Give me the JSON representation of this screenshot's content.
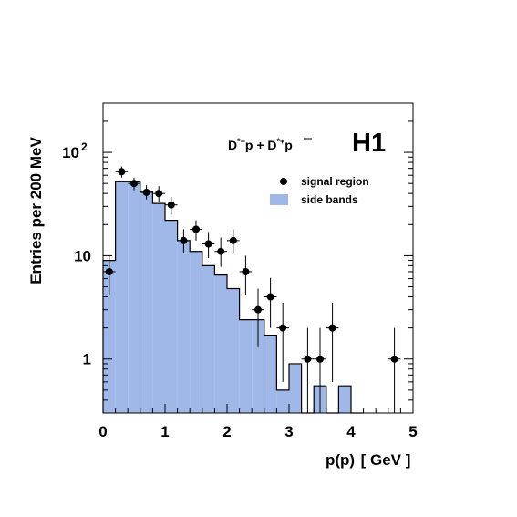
{
  "colors": {
    "band_fill": "#9fb8e8",
    "line": "#000000",
    "marker": "#000000"
  },
  "chart_data": {
    "type": "bar",
    "title": "",
    "experiment_label": "H1",
    "process_label": {
      "part1": "D",
      "part1_sup": "*−",
      "part2": "p + D",
      "part2_sup": "*+",
      "part3": "p"
    },
    "xlabel": "p(p)",
    "xlabel_units": "[ GeV ]",
    "ylabel": "Entries per 200 MeV",
    "xlim": [
      0,
      5
    ],
    "ylim": [
      0.3,
      300
    ],
    "y_scale": "log",
    "x_ticks": [
      "0",
      "1",
      "2",
      "3",
      "4",
      "5"
    ],
    "y_ticks": [
      {
        "value": 1,
        "label": "1",
        "sup": ""
      },
      {
        "value": 10,
        "label": "10",
        "sup": ""
      },
      {
        "value": 100,
        "label": "10",
        "sup": "2"
      }
    ],
    "legend": {
      "placement": "top-right",
      "entries": [
        {
          "name": "signal region",
          "symbol": "dot"
        },
        {
          "name": "side bands",
          "symbol": "box"
        }
      ]
    },
    "series": [
      {
        "name": "side bands",
        "kind": "histogram",
        "bin_width": 0.2,
        "bins": [
          {
            "x0": 0.0,
            "value": 9
          },
          {
            "x0": 0.2,
            "value": 52
          },
          {
            "x0": 0.4,
            "value": 52
          },
          {
            "x0": 0.6,
            "value": 42
          },
          {
            "x0": 0.8,
            "value": 32
          },
          {
            "x0": 1.0,
            "value": 22
          },
          {
            "x0": 1.2,
            "value": 14
          },
          {
            "x0": 1.4,
            "value": 11
          },
          {
            "x0": 1.6,
            "value": 8
          },
          {
            "x0": 1.8,
            "value": 6.5
          },
          {
            "x0": 2.0,
            "value": 4.8
          },
          {
            "x0": 2.2,
            "value": 2.4
          },
          {
            "x0": 2.4,
            "value": 2.4
          },
          {
            "x0": 2.6,
            "value": 1.7
          },
          {
            "x0": 2.8,
            "value": 0.5
          },
          {
            "x0": 3.0,
            "value": 0.9
          },
          {
            "x0": 3.2,
            "value": 0.3
          },
          {
            "x0": 3.4,
            "value": 0.55
          },
          {
            "x0": 3.6,
            "value": 0.3
          },
          {
            "x0": 3.8,
            "value": 0.55
          },
          {
            "x0": 4.0,
            "value": 0.3
          }
        ]
      },
      {
        "name": "signal region",
        "kind": "points",
        "points": [
          {
            "x": 0.1,
            "y": 7,
            "lo": 4.2,
            "hi": 10
          },
          {
            "x": 0.3,
            "y": 65,
            "lo": 57,
            "hi": 73
          },
          {
            "x": 0.5,
            "y": 50,
            "lo": 43,
            "hi": 57
          },
          {
            "x": 0.7,
            "y": 41,
            "lo": 35,
            "hi": 48
          },
          {
            "x": 0.9,
            "y": 40,
            "lo": 33,
            "hi": 47
          },
          {
            "x": 1.1,
            "y": 31,
            "lo": 25,
            "hi": 37
          },
          {
            "x": 1.3,
            "y": 14,
            "lo": 10.5,
            "hi": 18
          },
          {
            "x": 1.5,
            "y": 18,
            "lo": 14,
            "hi": 22
          },
          {
            "x": 1.7,
            "y": 13,
            "lo": 9.5,
            "hi": 17
          },
          {
            "x": 1.9,
            "y": 11,
            "lo": 7.8,
            "hi": 15
          },
          {
            "x": 2.1,
            "y": 14,
            "lo": 10.5,
            "hi": 18
          },
          {
            "x": 2.3,
            "y": 7,
            "lo": 4.2,
            "hi": 10
          },
          {
            "x": 2.5,
            "y": 3,
            "lo": 1.3,
            "hi": 4.8
          },
          {
            "x": 2.7,
            "y": 4,
            "lo": 2.0,
            "hi": 6.1
          },
          {
            "x": 2.9,
            "y": 2,
            "lo": 0.6,
            "hi": 3.5
          },
          {
            "x": 3.3,
            "y": 1,
            "lo": 0.3,
            "hi": 2.0
          },
          {
            "x": 3.5,
            "y": 1,
            "lo": 0.3,
            "hi": 2.0
          },
          {
            "x": 3.7,
            "y": 2,
            "lo": 0.6,
            "hi": 3.5
          },
          {
            "x": 4.7,
            "y": 1,
            "lo": 0.3,
            "hi": 2.0
          }
        ]
      }
    ]
  }
}
